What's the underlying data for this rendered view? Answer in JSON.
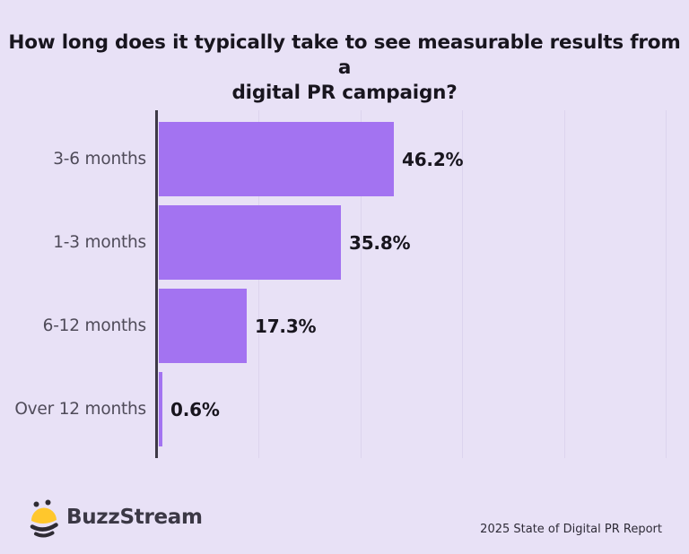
{
  "page": {
    "background_color": "#E8E1F6"
  },
  "title": {
    "text": "How long does it typically take to see measurable results from a digital PR campaign?",
    "line1": "How long does it typically take to see measurable results from a",
    "line2": "digital PR campaign?"
  },
  "chart_data": {
    "type": "bar",
    "orientation": "horizontal",
    "title": "How long does it typically take to see measurable results from a digital PR campaign?",
    "categories": [
      "3-6 months",
      "1-3 months",
      "6-12 months",
      "Over 12 months"
    ],
    "values": [
      46.2,
      35.8,
      17.3,
      0.6
    ],
    "value_labels": [
      "46.2%",
      "35.8%",
      "17.3%",
      "0.6%"
    ],
    "xlabel": "",
    "ylabel": "",
    "xlim": [
      0,
      100
    ],
    "gridlines_at": [
      20,
      40,
      60,
      80,
      100
    ],
    "grid": true,
    "legend": false,
    "bar_color": "#A373F1",
    "axis_color": "#3D3946",
    "gridline_color": "#DCD4EE",
    "category_label_color": "#4F4B59",
    "value_label_color": "#18151E"
  },
  "branding": {
    "logo_text": "BuzzStream",
    "bee_yellow": "#FFC72C",
    "bee_dark": "#2E2B33"
  },
  "footer": {
    "source": "2025 State of Digital PR Report"
  }
}
